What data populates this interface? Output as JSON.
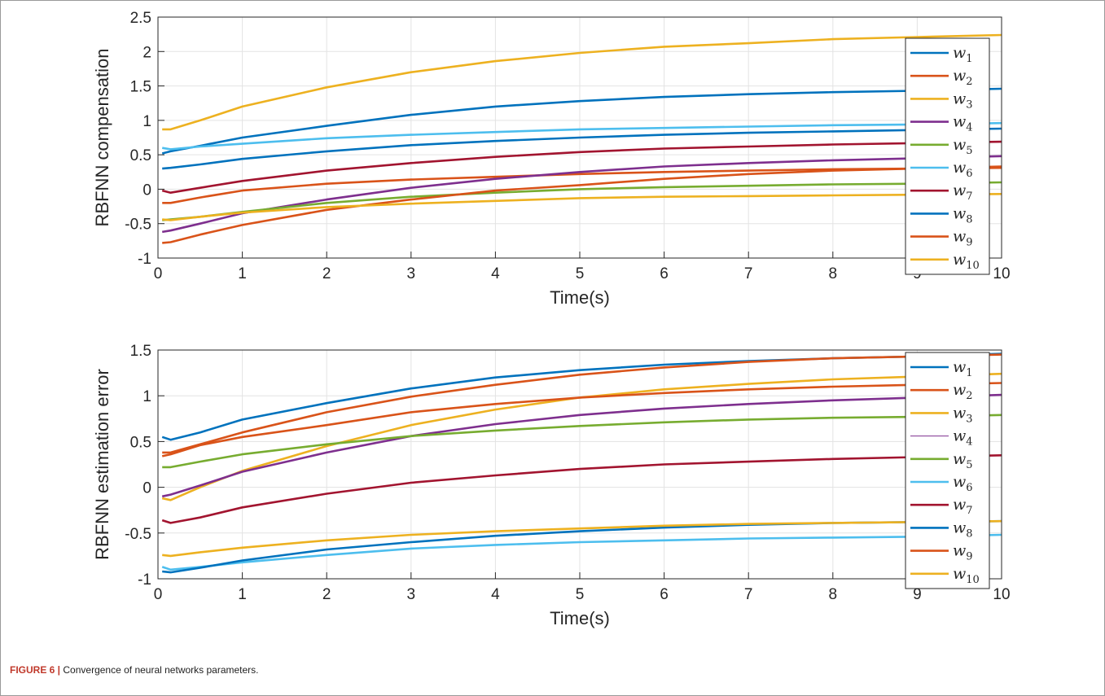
{
  "figure": {
    "caption_label": "FIGURE 6 |",
    "caption_text": "Convergence of neural networks parameters."
  },
  "legend_labels": [
    "w1",
    "w2",
    "w3",
    "w4",
    "w5",
    "w6",
    "w7",
    "w8",
    "w9",
    "w10"
  ],
  "chart_data": [
    {
      "type": "line",
      "ylabel": "RBFNN compensation",
      "xlabel": "Time(s)",
      "xlim": [
        0,
        10
      ],
      "ylim": [
        -1,
        2.5
      ],
      "xticks": [
        0,
        1,
        2,
        3,
        4,
        5,
        6,
        7,
        8,
        9,
        10
      ],
      "yticks": [
        -1,
        -0.5,
        0,
        0.5,
        1,
        1.5,
        2,
        2.5
      ],
      "grid": true,
      "legend_position": "top-right",
      "x": [
        0.05,
        0.15,
        0.5,
        1,
        2,
        3,
        4,
        5,
        6,
        7,
        8,
        9,
        10
      ],
      "series": [
        {
          "name": "w1",
          "color": "#0072BD",
          "values": [
            0.52,
            0.55,
            0.63,
            0.75,
            0.92,
            1.08,
            1.2,
            1.28,
            1.34,
            1.38,
            1.41,
            1.43,
            1.46
          ]
        },
        {
          "name": "w2",
          "color": "#D95319",
          "values": [
            -0.2,
            -0.2,
            -0.12,
            -0.02,
            0.08,
            0.14,
            0.18,
            0.22,
            0.25,
            0.27,
            0.29,
            0.3,
            0.31
          ]
        },
        {
          "name": "w3",
          "color": "#EDB120",
          "values": [
            0.87,
            0.87,
            1.0,
            1.2,
            1.48,
            1.7,
            1.86,
            1.98,
            2.07,
            2.12,
            2.18,
            2.21,
            2.24
          ]
        },
        {
          "name": "w4",
          "color": "#7E2F8E",
          "values": [
            -0.62,
            -0.6,
            -0.5,
            -0.35,
            -0.15,
            0.02,
            0.15,
            0.25,
            0.33,
            0.38,
            0.42,
            0.45,
            0.48
          ]
        },
        {
          "name": "w5",
          "color": "#77AC30",
          "values": [
            -0.45,
            -0.44,
            -0.4,
            -0.33,
            -0.2,
            -0.11,
            -0.05,
            0.0,
            0.03,
            0.05,
            0.07,
            0.08,
            0.1
          ]
        },
        {
          "name": "w6",
          "color": "#4DBEEE",
          "values": [
            0.6,
            0.58,
            0.62,
            0.66,
            0.74,
            0.79,
            0.83,
            0.87,
            0.89,
            0.91,
            0.93,
            0.94,
            0.96
          ]
        },
        {
          "name": "w7",
          "color": "#A2142F",
          "values": [
            -0.02,
            -0.05,
            0.02,
            0.12,
            0.27,
            0.38,
            0.47,
            0.54,
            0.59,
            0.62,
            0.65,
            0.67,
            0.69
          ]
        },
        {
          "name": "w8",
          "color": "#0072BD",
          "values": [
            0.3,
            0.31,
            0.36,
            0.44,
            0.55,
            0.64,
            0.7,
            0.75,
            0.79,
            0.82,
            0.84,
            0.86,
            0.88
          ]
        },
        {
          "name": "w9",
          "color": "#D95319",
          "values": [
            -0.78,
            -0.77,
            -0.66,
            -0.52,
            -0.3,
            -0.15,
            -0.02,
            0.06,
            0.15,
            0.22,
            0.27,
            0.3,
            0.33
          ]
        },
        {
          "name": "w10",
          "color": "#EDB120",
          "values": [
            -0.44,
            -0.45,
            -0.4,
            -0.34,
            -0.26,
            -0.21,
            -0.17,
            -0.13,
            -0.11,
            -0.1,
            -0.09,
            -0.08,
            -0.07
          ]
        }
      ]
    },
    {
      "type": "line",
      "ylabel": "RBFNN estimation error",
      "xlabel": "Time(s)",
      "xlim": [
        0,
        10
      ],
      "ylim": [
        -1,
        1.5
      ],
      "xticks": [
        0,
        1,
        2,
        3,
        4,
        5,
        6,
        7,
        8,
        9,
        10
      ],
      "yticks": [
        -1,
        -0.5,
        0,
        0.5,
        1,
        1.5
      ],
      "grid": true,
      "legend_position": "top-right",
      "x": [
        0.05,
        0.15,
        0.5,
        1,
        2,
        3,
        4,
        5,
        6,
        7,
        8,
        9,
        10
      ],
      "series": [
        {
          "name": "w1",
          "color": "#0072BD",
          "values": [
            0.55,
            0.52,
            0.6,
            0.74,
            0.92,
            1.08,
            1.2,
            1.28,
            1.34,
            1.38,
            1.41,
            1.43,
            1.46
          ]
        },
        {
          "name": "w2",
          "color": "#D95319",
          "values": [
            0.38,
            0.38,
            0.47,
            0.6,
            0.82,
            0.99,
            1.12,
            1.23,
            1.31,
            1.37,
            1.41,
            1.43,
            1.45
          ]
        },
        {
          "name": "w3",
          "color": "#EDB120",
          "values": [
            -0.12,
            -0.14,
            0.0,
            0.18,
            0.45,
            0.68,
            0.85,
            0.98,
            1.07,
            1.13,
            1.18,
            1.21,
            1.24
          ]
        },
        {
          "name": "w4",
          "color": "#7E2F8E",
          "values": [
            -0.1,
            -0.08,
            0.02,
            0.17,
            0.38,
            0.56,
            0.69,
            0.79,
            0.86,
            0.91,
            0.95,
            0.98,
            1.01
          ]
        },
        {
          "name": "w5",
          "color": "#77AC30",
          "values": [
            0.22,
            0.22,
            0.28,
            0.36,
            0.47,
            0.56,
            0.62,
            0.67,
            0.71,
            0.74,
            0.76,
            0.77,
            0.79
          ]
        },
        {
          "name": "w6",
          "color": "#4DBEEE",
          "values": [
            -0.87,
            -0.9,
            -0.87,
            -0.82,
            -0.74,
            -0.67,
            -0.63,
            -0.6,
            -0.58,
            -0.56,
            -0.55,
            -0.54,
            -0.52
          ]
        },
        {
          "name": "w7",
          "color": "#A2142F",
          "values": [
            -0.36,
            -0.39,
            -0.33,
            -0.22,
            -0.07,
            0.05,
            0.13,
            0.2,
            0.25,
            0.28,
            0.31,
            0.33,
            0.35
          ]
        },
        {
          "name": "w8",
          "color": "#0072BD",
          "values": [
            -0.92,
            -0.93,
            -0.88,
            -0.8,
            -0.68,
            -0.6,
            -0.53,
            -0.48,
            -0.44,
            -0.41,
            -0.39,
            -0.38,
            -0.37
          ]
        },
        {
          "name": "w9",
          "color": "#D95319",
          "values": [
            0.34,
            0.36,
            0.46,
            0.55,
            0.68,
            0.82,
            0.91,
            0.98,
            1.03,
            1.07,
            1.1,
            1.12,
            1.14
          ]
        },
        {
          "name": "w10",
          "color": "#EDB120",
          "values": [
            -0.74,
            -0.75,
            -0.71,
            -0.66,
            -0.58,
            -0.52,
            -0.48,
            -0.45,
            -0.42,
            -0.4,
            -0.39,
            -0.38,
            -0.37
          ]
        }
      ]
    }
  ]
}
